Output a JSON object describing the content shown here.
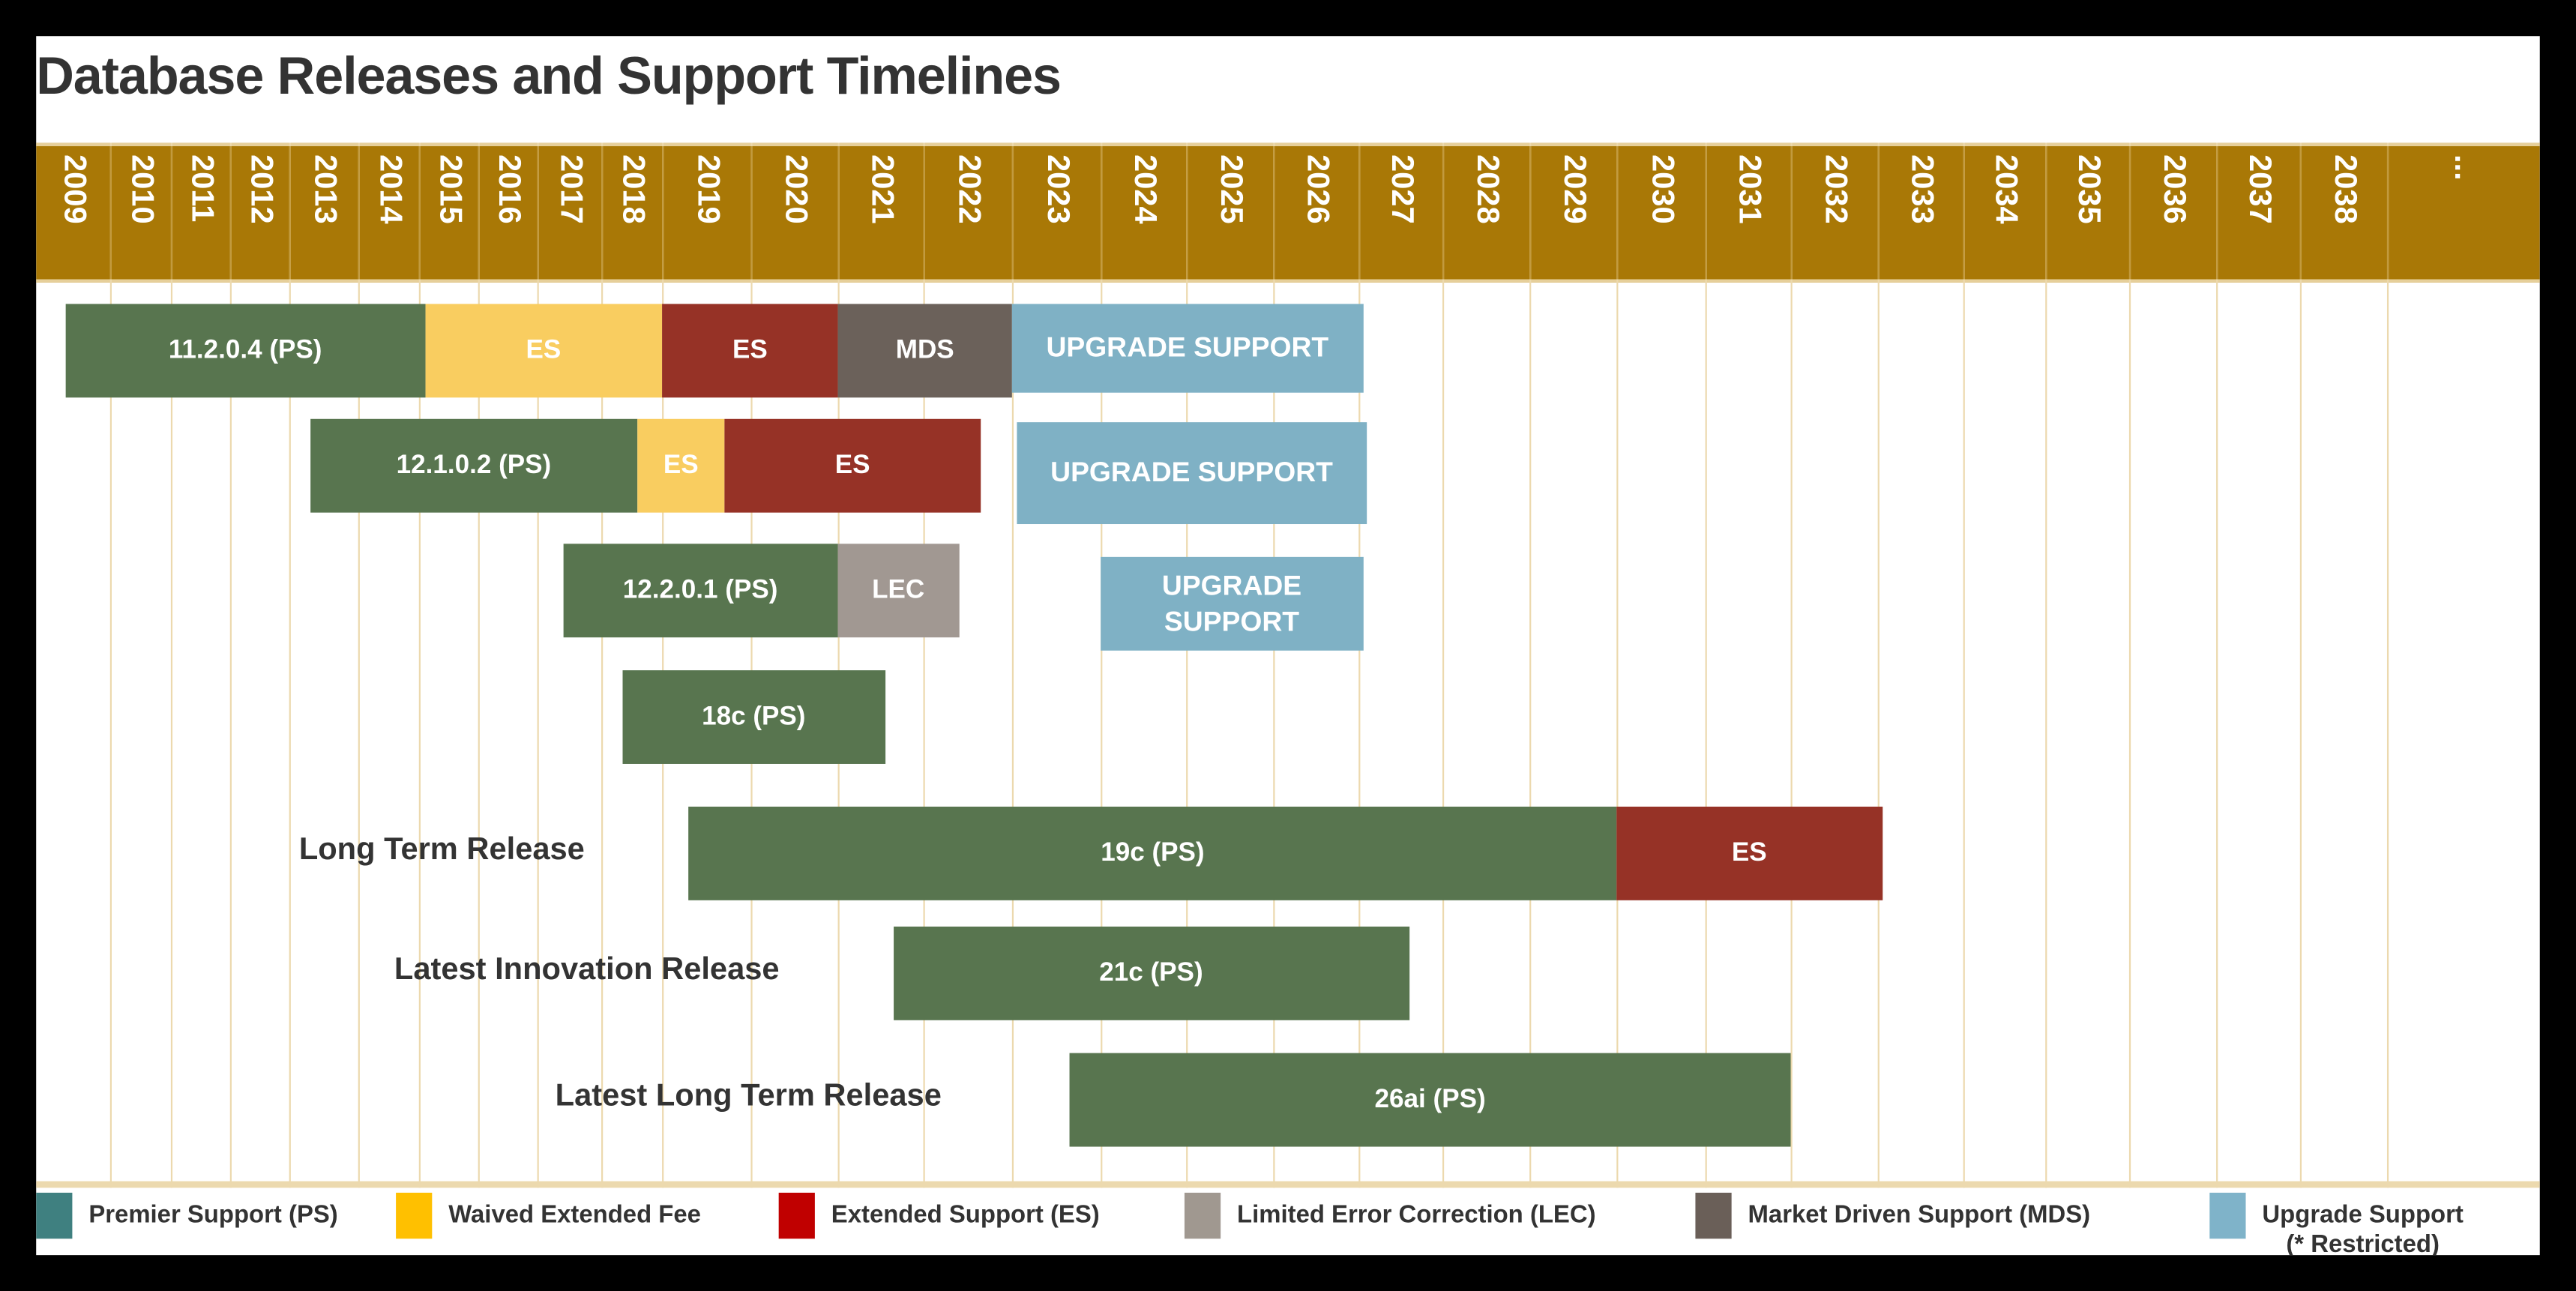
{
  "title": "Database Releases and Support Timelines",
  "years": [
    "2009",
    "2010",
    "2011",
    "2012",
    "2013",
    "2014",
    "2015",
    "2016",
    "2017",
    "2018",
    "2019",
    "2020",
    "2021",
    "2022",
    "2023",
    "2024",
    "2025",
    "2026",
    "2027",
    "2028",
    "2029",
    "2030",
    "2031",
    "2032",
    "2033",
    "2034",
    "2035",
    "2036",
    "2037",
    "2038",
    "..."
  ],
  "colors": {
    "header": "#a97806",
    "premier_support": "#58754f",
    "waived_extended_fee": "#f9cd60",
    "extended_support": "#963226",
    "market_driven_support": "#6b615a",
    "limited_error_correction": "#a19892",
    "upgrade_support": "#7fb1c5",
    "gridline": "#ecd9ae"
  },
  "chart_data": {
    "type": "gantt",
    "title": "Database Releases and Support Timelines",
    "xlim": [
      2009,
      2039
    ],
    "x_unit": "year",
    "grid": true,
    "legend_placement": "bottom",
    "rows": [
      {
        "label": "",
        "segments": [
          {
            "text": "11.2.0.4 (PS)",
            "kind": "premier_support",
            "start": 2009.4,
            "end": 2015.1
          },
          {
            "text": "ES",
            "kind": "waived_extended_fee",
            "start": 2015.1,
            "end": 2019.0
          },
          {
            "text": "ES",
            "kind": "extended_support",
            "start": 2019.0,
            "end": 2021.0
          },
          {
            "text": "MDS",
            "kind": "market_driven_support",
            "start": 2021.0,
            "end": 2023.0
          },
          {
            "text": "UPGRADE SUPPORT",
            "kind": "upgrade_support",
            "start": 2023.0,
            "end": 2027.05
          }
        ]
      },
      {
        "label": "",
        "segments": [
          {
            "text": "12.1.0.2 (PS)",
            "kind": "premier_support",
            "start": 2013.3,
            "end": 2018.6
          },
          {
            "text": "ES",
            "kind": "waived_extended_fee",
            "start": 2018.6,
            "end": 2019.7
          },
          {
            "text": "ES",
            "kind": "extended_support",
            "start": 2019.7,
            "end": 2022.65
          },
          {
            "text": "UPGRADE SUPPORT",
            "kind": "upgrade_support",
            "start": 2023.05,
            "end": 2027.1
          }
        ]
      },
      {
        "label": "",
        "segments": [
          {
            "text": "12.2.0.1 (PS)",
            "kind": "premier_support",
            "start": 2017.4,
            "end": 2021.0
          },
          {
            "text": "LEC",
            "kind": "limited_error_correction",
            "start": 2021.0,
            "end": 2022.4
          },
          {
            "text": "UPGRADE\nSUPPORT",
            "kind": "upgrade_support",
            "start": 2024.0,
            "end": 2027.05
          }
        ]
      },
      {
        "label": "",
        "segments": [
          {
            "text": "18c (PS)",
            "kind": "premier_support",
            "start": 2018.35,
            "end": 2021.55
          }
        ]
      },
      {
        "label": "Long Term Release",
        "segments": [
          {
            "text": "19c (PS)",
            "kind": "premier_support",
            "start": 2019.3,
            "end": 2030.0
          },
          {
            "text": "ES",
            "kind": "extended_support",
            "start": 2030.0,
            "end": 2033.05
          }
        ]
      },
      {
        "label": "Latest Innovation Release",
        "segments": [
          {
            "text": "21c (PS)",
            "kind": "premier_support",
            "start": 2021.65,
            "end": 2027.6
          }
        ]
      },
      {
        "label": "Latest Long Term Release",
        "segments": [
          {
            "text": "26ai (PS)",
            "kind": "premier_support",
            "start": 2023.65,
            "end": 2032.0
          }
        ]
      }
    ]
  },
  "legend": [
    {
      "label": "Premier Support (PS)",
      "color": "#3f8080"
    },
    {
      "label": "Waived Extended Fee",
      "color": "#ffc000"
    },
    {
      "label": "Extended Support (ES)",
      "color": "#c00000"
    },
    {
      "label": "Limited Error Correction (LEC)",
      "color": "#a09890"
    },
    {
      "label": "Market Driven Support (MDS)",
      "color": "#6a5f58"
    },
    {
      "label": "Upgrade Support\n(* Restricted)",
      "color": "#7fb3c9"
    }
  ]
}
